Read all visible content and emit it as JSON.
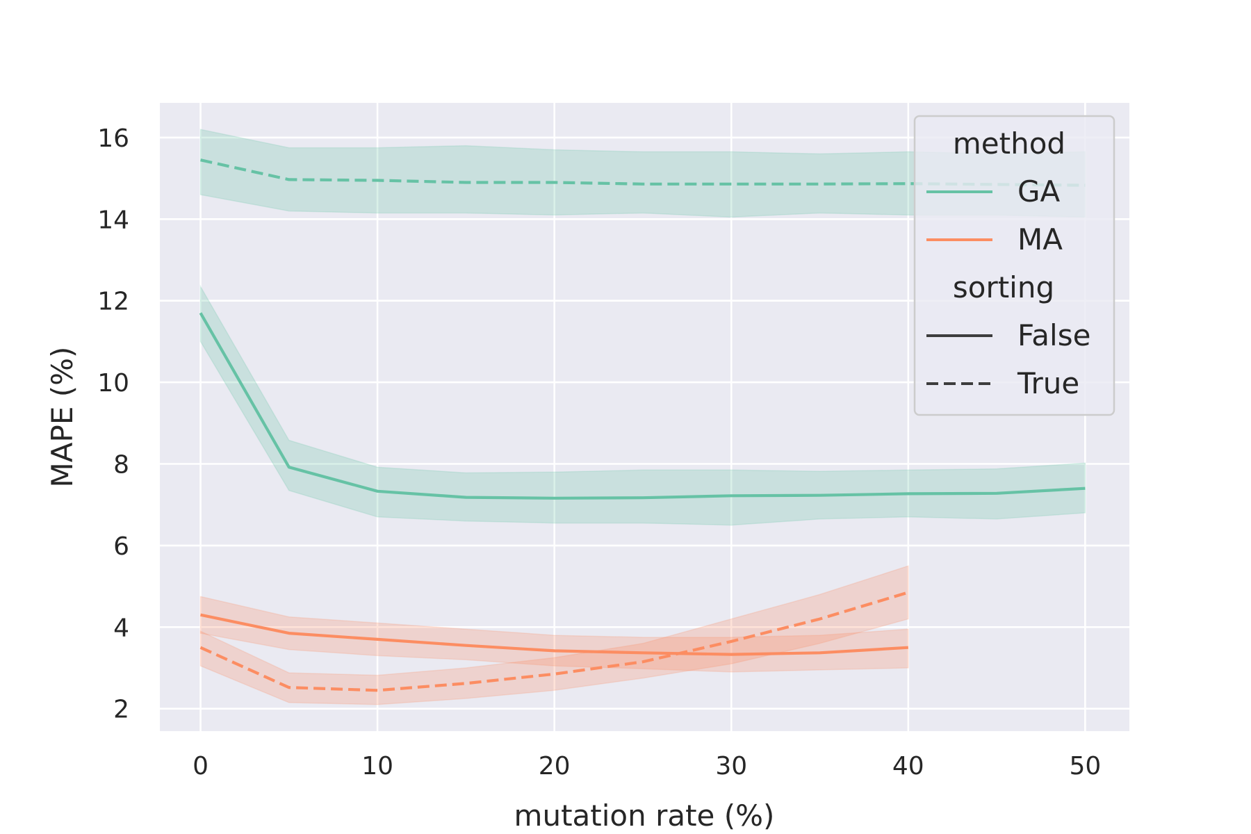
{
  "chart_data": {
    "type": "line",
    "xlabel": "mutation rate (%)",
    "ylabel": "MAPE (%)",
    "xlim": [
      -2.3,
      52.5
    ],
    "ylim": [
      1.45,
      16.85
    ],
    "xticks": [
      0,
      10,
      20,
      30,
      40,
      50
    ],
    "yticks": [
      2,
      4,
      6,
      8,
      10,
      12,
      14,
      16
    ],
    "grid": true,
    "legend_position": "top-right",
    "colors": {
      "GA": "#66c2a5",
      "MA": "#fc8d62",
      "background": "#eaeaf2",
      "grid": "#ffffff",
      "text": "#262626"
    },
    "legend": {
      "hue_title": "method",
      "hue_entries": [
        "GA",
        "MA"
      ],
      "style_title": "sorting",
      "style_entries": [
        "False",
        "True"
      ]
    },
    "series": [
      {
        "method": "GA",
        "sorting": "True",
        "x": [
          0,
          5,
          10,
          15,
          20,
          25,
          30,
          35,
          40,
          45,
          50
        ],
        "y": [
          15.45,
          14.97,
          14.95,
          14.9,
          14.9,
          14.86,
          14.86,
          14.86,
          14.87,
          14.85,
          14.83
        ],
        "ci_low": [
          14.6,
          14.2,
          14.15,
          14.15,
          14.1,
          14.15,
          14.05,
          14.15,
          14.1,
          14.1,
          14.05
        ],
        "ci_high": [
          16.2,
          15.75,
          15.75,
          15.8,
          15.7,
          15.65,
          15.65,
          15.6,
          15.65,
          15.6,
          15.65
        ]
      },
      {
        "method": "GA",
        "sorting": "False",
        "x": [
          0,
          5,
          10,
          15,
          20,
          25,
          30,
          35,
          40,
          45,
          50
        ],
        "y": [
          11.7,
          7.92,
          7.33,
          7.18,
          7.16,
          7.17,
          7.22,
          7.23,
          7.27,
          7.28,
          7.4
        ],
        "ci_low": [
          11.0,
          7.35,
          6.7,
          6.6,
          6.55,
          6.55,
          6.5,
          6.65,
          6.7,
          6.65,
          6.8
        ],
        "ci_high": [
          12.35,
          8.58,
          7.92,
          7.78,
          7.8,
          7.85,
          7.85,
          7.82,
          7.85,
          7.88,
          8.02
        ]
      },
      {
        "method": "MA",
        "sorting": "False",
        "x": [
          0,
          5,
          10,
          15,
          20,
          25,
          30,
          35,
          40
        ],
        "y": [
          4.3,
          3.85,
          3.7,
          3.55,
          3.42,
          3.37,
          3.33,
          3.37,
          3.5
        ],
        "ci_low": [
          3.85,
          3.45,
          3.3,
          3.2,
          3.05,
          2.98,
          2.9,
          2.95,
          3.0
        ],
        "ci_high": [
          4.75,
          4.25,
          4.1,
          3.95,
          3.8,
          3.75,
          3.75,
          3.8,
          3.95
        ]
      },
      {
        "method": "MA",
        "sorting": "True",
        "x": [
          0,
          5,
          10,
          15,
          20,
          25,
          30,
          35,
          40
        ],
        "y": [
          3.5,
          2.52,
          2.45,
          2.62,
          2.85,
          3.15,
          3.65,
          4.2,
          4.85
        ],
        "ci_low": [
          3.05,
          2.15,
          2.1,
          2.25,
          2.45,
          2.75,
          3.1,
          3.6,
          4.2
        ],
        "ci_high": [
          3.9,
          2.88,
          2.82,
          3.0,
          3.25,
          3.6,
          4.2,
          4.8,
          5.5
        ]
      }
    ]
  }
}
